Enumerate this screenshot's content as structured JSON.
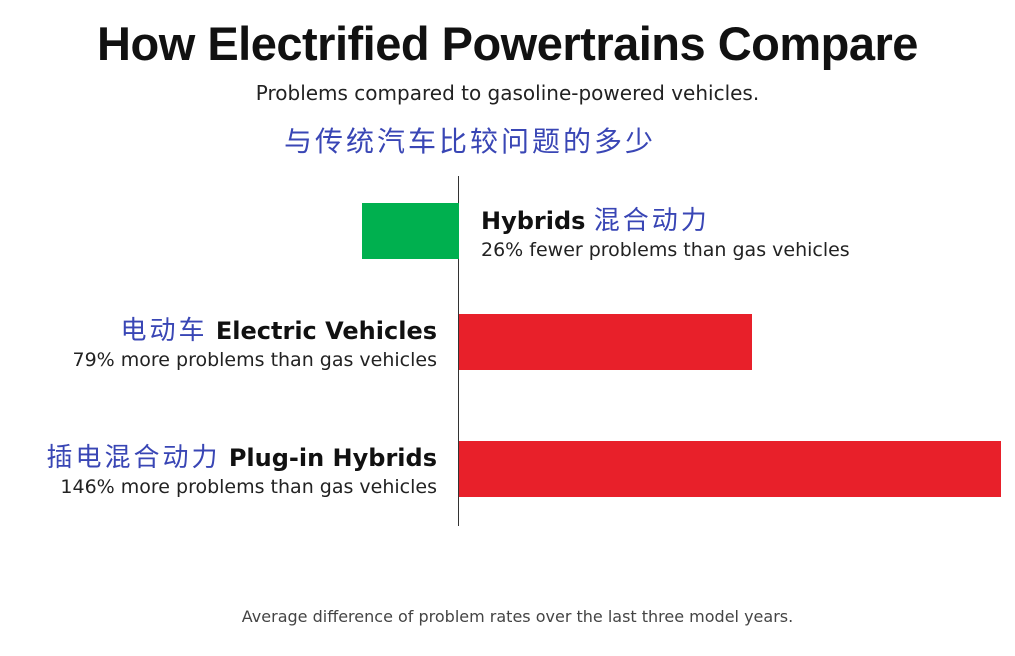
{
  "chart_data": {
    "type": "bar",
    "orientation": "horizontal",
    "title": "How Electrified Powertrains Compare",
    "subtitle": "Problems compared to gasoline-powered vehicles.",
    "subtitle_cn": "与传统汽车比较问题的多少",
    "unit": "% vs gas vehicles",
    "categories": [
      {
        "name": "Hybrids",
        "name_cn": "混合动力",
        "value": -26,
        "description": "26% fewer problems than gas vehicles",
        "color": "#00b04f"
      },
      {
        "name": "Electric Vehicles",
        "name_cn": "电动车",
        "value": 79,
        "description": "79% more problems than gas vehicles",
        "color": "#e8202a"
      },
      {
        "name": "Plug-in Hybrids",
        "name_cn": "插电混合动力",
        "value": 146,
        "description": "146% more problems than gas vehicles",
        "color": "#e8202a"
      }
    ],
    "footnote": "Average difference of problem rates over the last three model years."
  }
}
